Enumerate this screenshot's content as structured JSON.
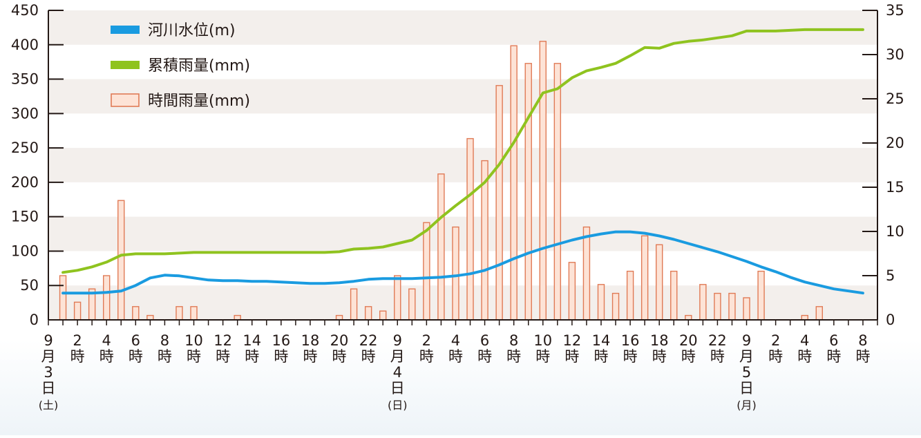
{
  "chart_data": {
    "type": "bar+line",
    "x_hours": [
      0,
      1,
      2,
      3,
      4,
      5,
      6,
      7,
      8,
      9,
      10,
      11,
      12,
      13,
      14,
      15,
      16,
      17,
      18,
      19,
      20,
      21,
      22,
      23,
      24,
      25,
      26,
      27,
      28,
      29,
      30,
      31,
      32,
      33,
      34,
      35,
      36,
      37,
      38,
      39,
      40,
      41,
      42,
      43,
      44,
      45,
      46,
      47,
      48,
      49,
      50,
      51,
      52,
      53,
      54,
      55,
      56
    ],
    "x_tick_labels": [
      {
        "hour": 0,
        "chars": [
          "9",
          "月",
          "3",
          "日",
          "(土)"
        ]
      },
      {
        "hour": 2,
        "chars": [
          "2",
          "時"
        ]
      },
      {
        "hour": 4,
        "chars": [
          "4",
          "時"
        ]
      },
      {
        "hour": 6,
        "chars": [
          "6",
          "時"
        ]
      },
      {
        "hour": 8,
        "chars": [
          "8",
          "時"
        ]
      },
      {
        "hour": 10,
        "chars": [
          "10",
          "時"
        ]
      },
      {
        "hour": 12,
        "chars": [
          "12",
          "時"
        ]
      },
      {
        "hour": 14,
        "chars": [
          "14",
          "時"
        ]
      },
      {
        "hour": 16,
        "chars": [
          "16",
          "時"
        ]
      },
      {
        "hour": 18,
        "chars": [
          "18",
          "時"
        ]
      },
      {
        "hour": 20,
        "chars": [
          "20",
          "時"
        ]
      },
      {
        "hour": 22,
        "chars": [
          "22",
          "時"
        ]
      },
      {
        "hour": 24,
        "chars": [
          "9",
          "月",
          "4",
          "日",
          "(日)"
        ]
      },
      {
        "hour": 26,
        "chars": [
          "2",
          "時"
        ]
      },
      {
        "hour": 28,
        "chars": [
          "4",
          "時"
        ]
      },
      {
        "hour": 30,
        "chars": [
          "6",
          "時"
        ]
      },
      {
        "hour": 32,
        "chars": [
          "8",
          "時"
        ]
      },
      {
        "hour": 34,
        "chars": [
          "10",
          "時"
        ]
      },
      {
        "hour": 36,
        "chars": [
          "12",
          "時"
        ]
      },
      {
        "hour": 38,
        "chars": [
          "14",
          "時"
        ]
      },
      {
        "hour": 40,
        "chars": [
          "16",
          "時"
        ]
      },
      {
        "hour": 42,
        "chars": [
          "18",
          "時"
        ]
      },
      {
        "hour": 44,
        "chars": [
          "20",
          "時"
        ]
      },
      {
        "hour": 46,
        "chars": [
          "22",
          "時"
        ]
      },
      {
        "hour": 48,
        "chars": [
          "9",
          "月",
          "5",
          "日",
          "(月)"
        ]
      },
      {
        "hour": 50,
        "chars": [
          "2",
          "時"
        ]
      },
      {
        "hour": 52,
        "chars": [
          "4",
          "時"
        ]
      },
      {
        "hour": 54,
        "chars": [
          "6",
          "時"
        ]
      },
      {
        "hour": 56,
        "chars": [
          "8",
          "時"
        ]
      }
    ],
    "left_axis": {
      "ylim": [
        0,
        450
      ],
      "ticks": [
        0,
        50,
        100,
        150,
        200,
        250,
        300,
        350,
        400,
        450
      ]
    },
    "right_axis": {
      "ylim": [
        0,
        35
      ],
      "ticks": [
        0,
        5,
        10,
        15,
        20,
        25,
        30,
        35
      ]
    },
    "series": [
      {
        "name": "河川水位(m)",
        "kind": "line",
        "axis": "left",
        "color": "#1a9be0",
        "x": [
          1,
          2,
          3,
          4,
          5,
          6,
          7,
          8,
          9,
          10,
          11,
          12,
          13,
          14,
          15,
          16,
          17,
          18,
          19,
          20,
          21,
          22,
          23,
          24,
          25,
          26,
          27,
          28,
          29,
          30,
          31,
          32,
          33,
          34,
          35,
          36,
          37,
          38,
          39,
          40,
          41,
          42,
          43,
          44,
          45,
          46,
          47,
          48,
          49,
          50,
          51,
          52,
          53,
          54,
          55,
          56
        ],
        "values": [
          39,
          39,
          39,
          40,
          42,
          50,
          61,
          65,
          64,
          61,
          58,
          57,
          57,
          56,
          56,
          55,
          54,
          53,
          53,
          54,
          56,
          59,
          60,
          60,
          60,
          61,
          62,
          64,
          67,
          72,
          80,
          89,
          97,
          104,
          110,
          116,
          121,
          125,
          128,
          128,
          126,
          122,
          117,
          111,
          105,
          99,
          92,
          85,
          77,
          70,
          62,
          55,
          50,
          45,
          42,
          39
        ]
      },
      {
        "name": "累積雨量(mm)",
        "kind": "line",
        "axis": "left",
        "color": "#8fc31f",
        "x": [
          1,
          2,
          3,
          4,
          5,
          6,
          7,
          8,
          9,
          10,
          11,
          12,
          13,
          14,
          15,
          16,
          17,
          18,
          19,
          20,
          21,
          22,
          23,
          24,
          25,
          26,
          27,
          28,
          29,
          30,
          31,
          32,
          33,
          34,
          35,
          36,
          37,
          38,
          39,
          40,
          41,
          42,
          43,
          44,
          45,
          46,
          47,
          48,
          49,
          50,
          51,
          52,
          53,
          54,
          55,
          56
        ],
        "values": [
          69,
          72,
          77,
          84,
          94,
          96,
          96,
          96,
          97,
          98,
          98,
          98,
          98,
          98,
          98,
          98,
          98,
          98,
          98,
          99,
          103,
          104,
          106,
          111,
          116,
          130,
          149,
          166,
          182,
          200,
          226,
          258,
          294,
          330,
          336,
          352,
          362,
          367,
          373,
          384,
          396,
          395,
          402,
          405,
          407,
          410,
          413,
          420,
          420,
          420,
          421,
          422,
          422,
          422,
          422,
          422
        ]
      },
      {
        "name": "時間雨量(mm)",
        "kind": "bar",
        "axis": "right",
        "color": "#f2a58a",
        "x": [
          1,
          2,
          3,
          4,
          5,
          6,
          7,
          9,
          10,
          13,
          20,
          21,
          22,
          23,
          24,
          25,
          26,
          27,
          28,
          29,
          30,
          31,
          32,
          33,
          34,
          35,
          36,
          37,
          38,
          39,
          40,
          41,
          42,
          43,
          44,
          45,
          46,
          47,
          48,
          49,
          52,
          53
        ],
        "values": [
          5,
          2,
          3.5,
          5,
          13.5,
          1.5,
          0.5,
          1.5,
          1.5,
          0.5,
          0.5,
          3.5,
          1.5,
          1,
          5,
          3.5,
          11,
          16.5,
          10.5,
          20.5,
          18,
          26.5,
          31,
          29,
          31.5,
          29,
          6.5,
          10.5,
          4,
          3,
          5.5,
          9.5,
          8.5,
          5.5,
          0.5,
          4,
          3,
          3,
          2.5,
          5.5,
          0.5,
          1.5
        ]
      }
    ],
    "legend": {
      "placement": "top-left",
      "items": [
        "河川水位(m)",
        "累積雨量(mm)",
        "時間雨量(mm)"
      ]
    },
    "grid": "alternating horizontal bands"
  }
}
